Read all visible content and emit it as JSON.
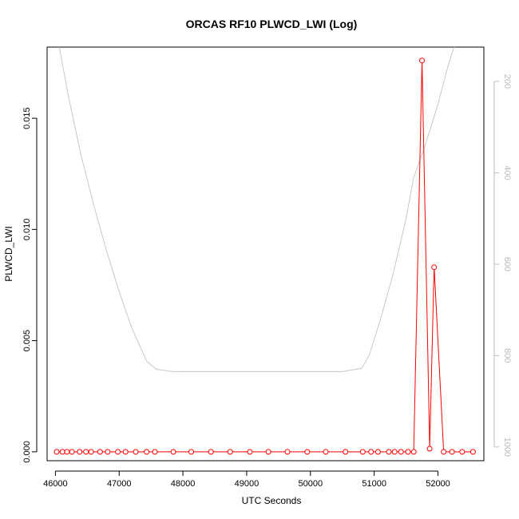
{
  "chart_data": {
    "type": "line",
    "title": "ORCAS RF10 PLWCD_LWI (Log)",
    "xlabel": "UTC Seconds",
    "ylabel": "PLWCD_LWI",
    "xlim": [
      45870,
      52720
    ],
    "ylim": [
      -0.0004,
      0.0182
    ],
    "x_ticks": [
      "46000",
      "47000",
      "48000",
      "49000",
      "50000",
      "51000",
      "52000"
    ],
    "y_ticks": [
      "0.000",
      "0.005",
      "0.010",
      "0.015"
    ],
    "y2_ticks": [
      "200",
      "400",
      "600",
      "800",
      "1000"
    ],
    "y2_range_top_to_bottom": [
      125,
      1030
    ],
    "colors": {
      "primary": "#ff0000",
      "secondary": "#c8c8c8",
      "axis": "#000000",
      "secondary_tick": "#bbbbbb"
    },
    "series": [
      {
        "values_x": [
          46020,
          46110,
          46180,
          46260,
          46380,
          46480,
          46560,
          46700,
          46820,
          46980,
          47100,
          47260,
          47430,
          47560,
          47850,
          48130,
          48440,
          48740,
          49050,
          49340,
          49640,
          49950,
          50240,
          50550,
          50820,
          50950,
          51060,
          51230,
          51320,
          51420,
          51530,
          51620,
          51750,
          51870,
          51940,
          52090,
          52220,
          52380,
          52550
        ],
        "values_y": [
          0,
          0,
          0,
          0,
          0,
          0,
          0,
          0,
          0,
          0,
          0,
          0,
          0,
          0,
          0,
          0,
          0,
          0,
          0,
          0,
          0,
          0,
          0,
          0,
          0,
          0,
          0,
          0,
          0,
          0,
          0,
          0,
          0.0176,
          0.00014,
          0.0083,
          0,
          0,
          0,
          0
        ]
      },
      {
        "values_x": [
          46060,
          46200,
          46400,
          46600,
          46800,
          47000,
          47200,
          47430,
          47580,
          47850,
          48500,
          49500,
          50500,
          50800,
          50920,
          51100,
          51300,
          51500,
          51620,
          51800,
          52000,
          52150,
          52250
        ],
        "values_y": [
          125,
          230,
          360,
          470,
          570,
          660,
          740,
          812,
          830,
          835,
          835,
          835,
          835,
          828,
          800,
          720,
          620,
          500,
          410,
          340,
          250,
          170,
          125
        ]
      }
    ]
  }
}
